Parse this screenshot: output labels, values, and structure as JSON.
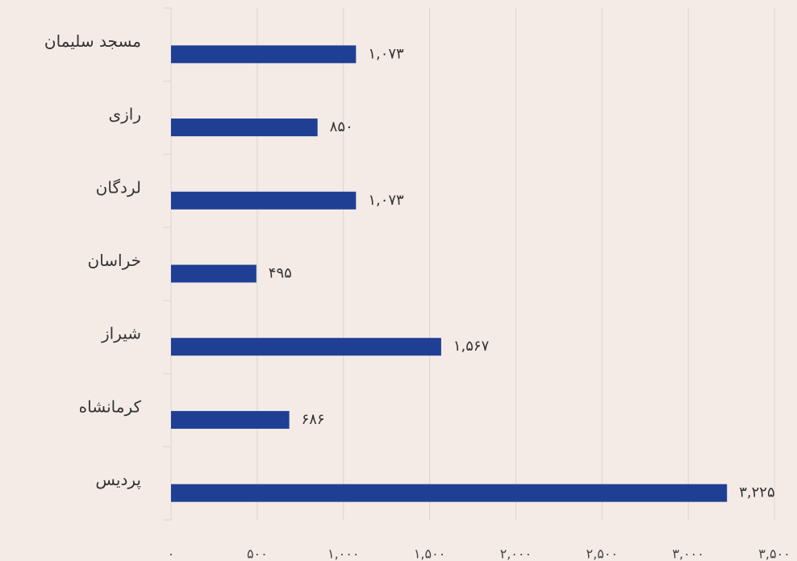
{
  "chart_data": {
    "type": "bar",
    "orientation": "horizontal",
    "categories": [
      "مسجد سلیمان",
      "رازی",
      "لردگان",
      "خراسان",
      "شیراز",
      "کرمانشاه",
      "پردیس"
    ],
    "values": [
      1073,
      850,
      1073,
      495,
      1567,
      686,
      3225
    ],
    "value_labels": [
      "۱,۰۷۳",
      "۸۵۰",
      "۱,۰۷۳",
      "۴۹۵",
      "۱,۵۶۷",
      "۶۸۶",
      "۳,۲۲۵"
    ],
    "color": "#1f3f94",
    "xlim": [
      0,
      3500
    ],
    "xticks": [
      {
        "value": 0,
        "label": "۰"
      },
      {
        "value": 500,
        "label": "۵۰۰"
      },
      {
        "value": 1000,
        "label": "۱,۰۰۰"
      },
      {
        "value": 1500,
        "label": "۱,۵۰۰"
      },
      {
        "value": 2000,
        "label": "۲,۰۰۰"
      },
      {
        "value": 2500,
        "label": "۲,۵۰۰"
      },
      {
        "value": 3000,
        "label": "۳,۰۰۰"
      },
      {
        "value": 3500,
        "label": "۳,۵۰۰"
      }
    ],
    "grid": true
  }
}
